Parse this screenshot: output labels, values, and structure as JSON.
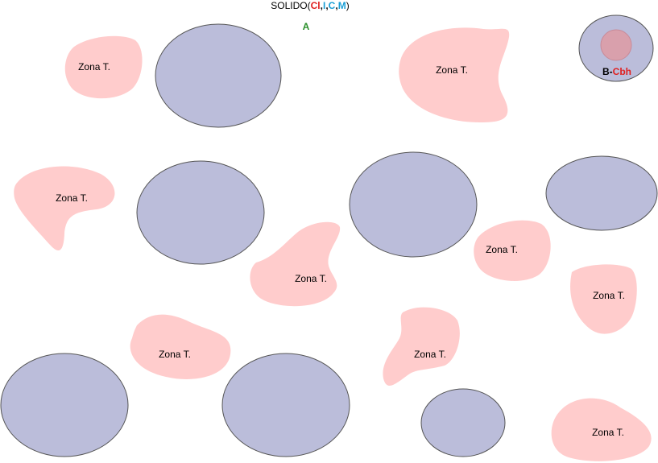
{
  "header": {
    "prefix": "SOLIDO(",
    "parts": [
      {
        "text": "Cl",
        "color": "#e02020"
      },
      {
        "text": ",",
        "color": "#111111"
      },
      {
        "text": "I",
        "color": "#1a9fd6"
      },
      {
        "text": ",",
        "color": "#111111"
      },
      {
        "text": "C",
        "color": "#1a9fd6"
      },
      {
        "text": ",",
        "color": "#111111"
      },
      {
        "text": "M",
        "color": "#1a9fd6"
      }
    ],
    "suffix": ")",
    "sub_label": "A",
    "sub_label_color": "#2a8f2a"
  },
  "bubble": {
    "label_black": "B-",
    "label_red": "Cbh"
  },
  "zone_label": "Zona T.",
  "colors": {
    "solid_fill": "#bbbdda",
    "solid_stroke": "#555555",
    "zone_fill": "#ffcccc",
    "inner_fill": "#d9a0ac"
  }
}
